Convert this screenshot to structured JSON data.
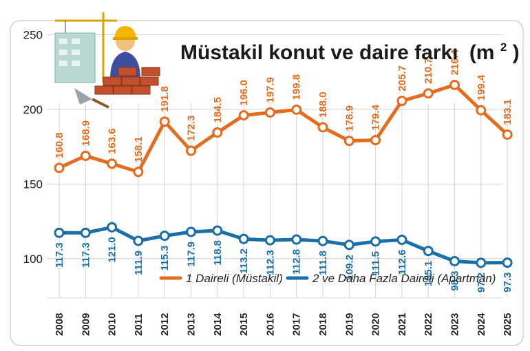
{
  "chart_data": {
    "type": "line",
    "title": "Müstakil konut ve daire farkı",
    "title_superscript": "2",
    "title_unit_prefix": "(m",
    "title_unit_suffix": ")",
    "xlabel": "",
    "ylabel": "",
    "ylim": [
      75,
      265
    ],
    "yticks": [
      100,
      150,
      200,
      250
    ],
    "grid": true,
    "legend_position": "bottom-right",
    "categories": [
      "2008",
      "2009",
      "2010",
      "2011",
      "2012",
      "2013",
      "2014",
      "2015",
      "2016",
      "2017",
      "2018",
      "2019",
      "2020",
      "2021",
      "2022",
      "2023",
      "2024",
      "2025"
    ],
    "series": [
      {
        "name": "1 Daireli (Müstakil)",
        "color": "#e46c1e",
        "values": [
          160.8,
          168.9,
          163.6,
          158.1,
          191.8,
          172.3,
          184.5,
          196.0,
          197.9,
          199.8,
          188.0,
          178.9,
          179.4,
          205.7,
          210.7,
          216.4,
          199.4,
          183.1
        ],
        "labels": [
          "160.8",
          "168.9",
          "163.6",
          "158.1",
          "191.8",
          "172.3",
          "184.5",
          "196.0",
          "197.9",
          "199.8",
          "188.0",
          "178.9",
          "179.4",
          "205.7",
          "210.7",
          "216.4",
          "199.4",
          "183.1"
        ]
      },
      {
        "name": "2 ve Daha Fazla Daireli (Apartman)",
        "color": "#1a6fa8",
        "values": [
          117.3,
          117.3,
          121.0,
          111.9,
          115.3,
          117.9,
          118.8,
          113.2,
          112.3,
          112.8,
          111.8,
          109.2,
          111.5,
          112.6,
          105.1,
          98.3,
          97.2,
          97.3
        ],
        "labels": [
          "117.3",
          "117.3",
          "121.0",
          "111.9",
          "115.3",
          "117.9",
          "118.8",
          "113.2",
          "112.3",
          "112.8",
          "111.8",
          "109.2",
          "111.5",
          "112.6",
          "105.1",
          "98.3",
          "97.2",
          "97.3"
        ]
      }
    ]
  },
  "colors": {
    "frame": "#d8d8d8",
    "grid": "#d4d4d4",
    "orange": "#e46c1e",
    "blue": "#1a6fa8"
  },
  "illustration": {
    "icon": "construction-worker-illustration"
  }
}
